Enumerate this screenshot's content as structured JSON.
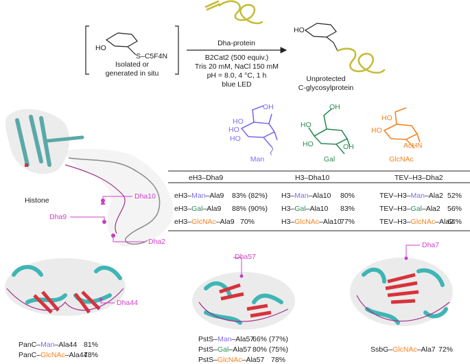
{
  "colors": {
    "man": "#7b6cf0",
    "gal": "#2e8b57",
    "glcnac": "#f58220",
    "dha_label": "#d03fc8",
    "protein_yellow": "#c4bd3a",
    "helix_teal": "#3fb5b5",
    "sheet_red": "#d8323a",
    "loop_purple": "#a0308a"
  },
  "reaction": {
    "reagent_substituent": "S–C5F4N",
    "reagent_oh": "HO",
    "reagent_caption_line1": "Isolated or",
    "reagent_caption_line2": "generated in situ",
    "arrow_above": "Dha-protein",
    "conditions": [
      "B2Cat2 (500 equiv.)",
      "Tris 20 mM, NaCl 150 mM",
      "pH = 8.0, 4 °C, 1 h",
      "blue LED"
    ],
    "product_oh": "HO",
    "product_line1": "Unprotected",
    "product_line2": "C-glycosylprotein"
  },
  "sugars": {
    "man": {
      "name": "Man",
      "labels": [
        "HO",
        "HO",
        "HO",
        "OH"
      ]
    },
    "gal": {
      "name": "Gal",
      "labels": [
        "OH",
        "HO",
        "HO",
        "OH"
      ]
    },
    "glcnac": {
      "name": "GlcNAc",
      "labels": [
        "HO",
        "HO",
        "AcHN"
      ]
    }
  },
  "histone": {
    "label": "Histone",
    "sites": [
      "Dha10",
      "Dha9",
      "Dha2"
    ]
  },
  "table": {
    "headers": [
      "eH3–Dha9",
      "H3–Dha10",
      "TEV–H3–Dha2"
    ],
    "rows": [
      [
        {
          "pre": "eH3–",
          "sugar": "Man",
          "post": "–Ala9",
          "yield": "83% (82%)"
        },
        {
          "pre": "H3–",
          "sugar": "Man",
          "post": "–Ala10",
          "yield": "80%"
        },
        {
          "pre": "TEV–H3–",
          "sugar": "Man",
          "post": "–Ala2",
          "yield": "52%"
        }
      ],
      [
        {
          "pre": "eH3–",
          "sugar": "Gal",
          "post": "–Ala9",
          "yield": "88% (90%)"
        },
        {
          "pre": "H3–",
          "sugar": "Gal",
          "post": "–Ala10",
          "yield": "83%"
        },
        {
          "pre": "TEV–H3–",
          "sugar": "Gal",
          "post": "–Ala2",
          "yield": "56%"
        }
      ],
      [
        {
          "pre": "eH3–",
          "sugar": "GlcNAc",
          "post": "–Ala9",
          "yield": "70%"
        },
        {
          "pre": "H3–",
          "sugar": "GlcNAc",
          "post": "–Ala10",
          "yield": "77%"
        },
        {
          "pre": "TEV–H3–",
          "sugar": "GlcNAc",
          "post": "–Ala2",
          "yield": "64%"
        }
      ]
    ]
  },
  "proteins": {
    "panc": {
      "site": "Dha44",
      "rows": [
        {
          "pre": "PanC–",
          "sugar": "Man",
          "post": "–Ala44",
          "yield": "81%"
        },
        {
          "pre": "PanC–",
          "sugar": "GlcNAc",
          "post": "–Ala44",
          "yield": "78%"
        }
      ]
    },
    "psts": {
      "site": "Dha57",
      "rows": [
        {
          "pre": "PstS–",
          "sugar": "Man",
          "post": "–Ala57",
          "yield": "66% (77%)"
        },
        {
          "pre": "PstS–",
          "sugar": "Gal",
          "post": "–Ala57",
          "yield": "80% (75%)"
        },
        {
          "pre": "PstS–",
          "sugar": "GlcNAc",
          "post": "–Ala57",
          "yield": "78%"
        }
      ]
    },
    "ssbg": {
      "site": "Dha7",
      "rows": [
        {
          "pre": "SsbG–",
          "sugar": "GlcNAc",
          "post": "–Ala7",
          "yield": "72%"
        }
      ]
    }
  }
}
